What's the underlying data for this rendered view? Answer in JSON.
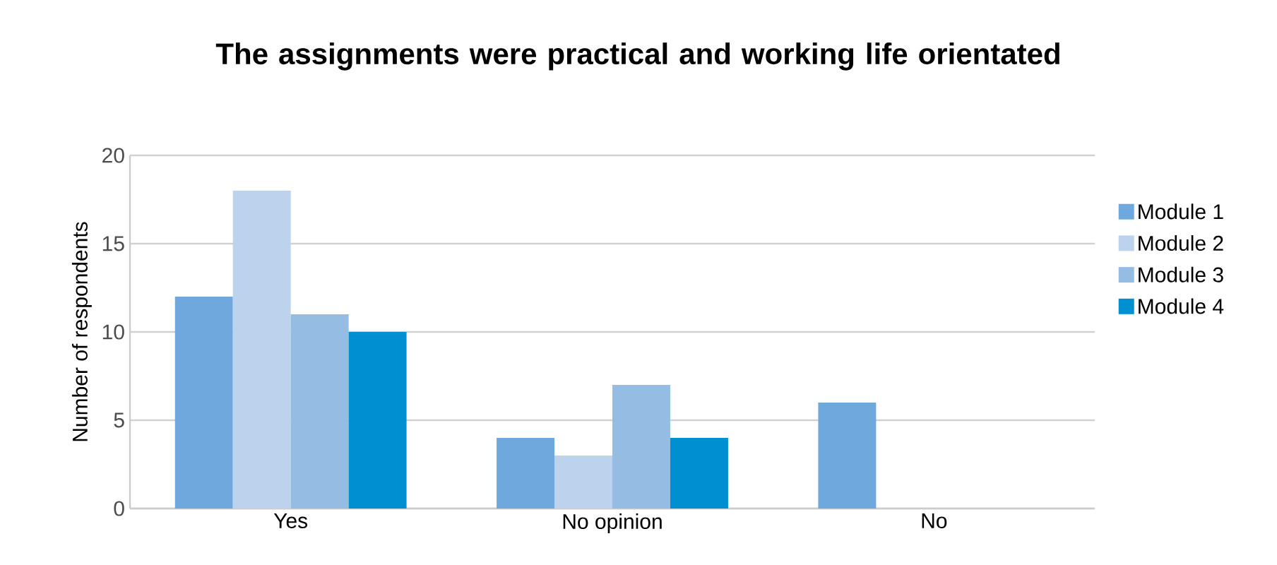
{
  "chart_data": {
    "type": "bar",
    "title": "The assignments were practical and working life orientated",
    "ylabel": "Number of respondents",
    "categories": [
      "Yes",
      "No opinion",
      "No"
    ],
    "series": [
      {
        "name": "Module 1",
        "color": "#6fa8dc",
        "values": [
          12,
          4,
          6
        ]
      },
      {
        "name": "Module 2",
        "color": "#bdd3ed",
        "values": [
          18,
          3,
          0
        ]
      },
      {
        "name": "Module 3",
        "color": "#95bde4",
        "values": [
          11,
          7,
          0
        ]
      },
      {
        "name": "Module 4",
        "color": "#0090d2",
        "values": [
          10,
          4,
          0
        ]
      }
    ],
    "ylim": [
      0,
      20
    ],
    "yticks": [
      0,
      5,
      10,
      15,
      20
    ],
    "grid": "y",
    "legend": "right"
  }
}
